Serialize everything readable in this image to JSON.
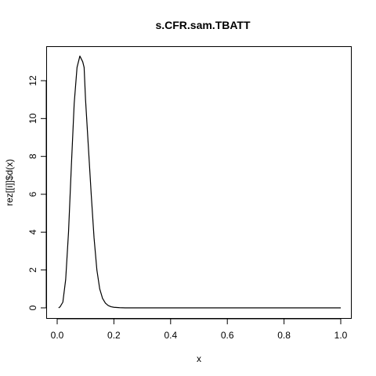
{
  "chart_data": {
    "type": "line",
    "title": "s.CFR.sam.TBATT",
    "xlabel": "x",
    "ylabel": "rez[[i]]$d(x)",
    "xlim": [
      0.0,
      1.0
    ],
    "ylim": [
      0,
      13.3
    ],
    "x_ticks": [
      "0.0",
      "0.2",
      "0.4",
      "0.6",
      "0.8",
      "1.0"
    ],
    "y_ticks": [
      "0",
      "2",
      "4",
      "6",
      "8",
      "10",
      "12"
    ],
    "grid": false,
    "legend": "none",
    "series": [
      {
        "x": [
          0.005,
          0.01,
          0.02,
          0.03,
          0.04,
          0.05,
          0.06,
          0.07,
          0.08,
          0.09,
          0.095,
          0.1,
          0.11,
          0.12,
          0.13,
          0.14,
          0.15,
          0.16,
          0.17,
          0.18,
          0.19,
          0.2,
          0.22,
          0.24,
          0.3,
          0.4,
          0.6,
          0.8,
          1.0
        ],
        "y": [
          0.0,
          0.05,
          0.3,
          1.5,
          4.0,
          7.5,
          10.8,
          12.7,
          13.3,
          13.0,
          12.7,
          11.0,
          8.5,
          6.0,
          3.7,
          2.0,
          1.0,
          0.5,
          0.25,
          0.12,
          0.06,
          0.03,
          0.01,
          0.0,
          0.0,
          0.0,
          0.0,
          0.0,
          0.0
        ],
        "color": "#000000"
      }
    ]
  }
}
